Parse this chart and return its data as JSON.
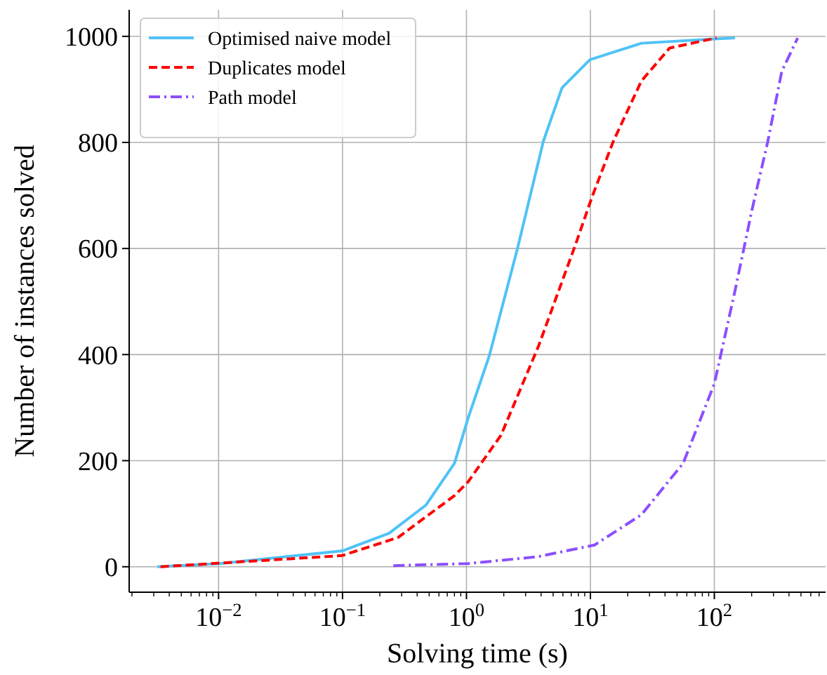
{
  "chart_data": {
    "type": "line",
    "xlabel": "Solving time (s)",
    "ylabel": "Number of instances solved",
    "log": "x",
    "grid": true,
    "legend": "top left",
    "xlim": [
      0.0019,
      790
    ],
    "ylim": [
      -48,
      1050
    ],
    "xticks": [
      {
        "value": 0.002,
        "label": null
      },
      {
        "value": 0.003,
        "label": null
      },
      {
        "value": 0.004,
        "label": null
      },
      {
        "value": 0.005,
        "label": null
      },
      {
        "value": 0.006,
        "label": null
      },
      {
        "value": 0.007,
        "label": null
      },
      {
        "value": 0.008,
        "label": null
      },
      {
        "value": 0.009,
        "label": null
      },
      {
        "value": 0.01,
        "label": "10$^{−2}$"
      },
      {
        "value": 0.02,
        "label": null
      },
      {
        "value": 0.03,
        "label": null
      },
      {
        "value": 0.04,
        "label": null
      },
      {
        "value": 0.05,
        "label": null
      },
      {
        "value": 0.06,
        "label": null
      },
      {
        "value": 0.07,
        "label": null
      },
      {
        "value": 0.08,
        "label": null
      },
      {
        "value": 0.09,
        "label": null
      },
      {
        "value": 0.1,
        "label": "10$^{−1}$"
      },
      {
        "value": 0.2,
        "label": null
      },
      {
        "value": 0.3,
        "label": null
      },
      {
        "value": 0.4,
        "label": null
      },
      {
        "value": 0.5,
        "label": null
      },
      {
        "value": 0.6,
        "label": null
      },
      {
        "value": 0.7,
        "label": null
      },
      {
        "value": 0.8,
        "label": null
      },
      {
        "value": 0.9,
        "label": null
      },
      {
        "value": 1,
        "label": "10$^{0}$"
      },
      {
        "value": 2,
        "label": null
      },
      {
        "value": 3,
        "label": null
      },
      {
        "value": 4,
        "label": null
      },
      {
        "value": 5,
        "label": null
      },
      {
        "value": 6,
        "label": null
      },
      {
        "value": 7,
        "label": null
      },
      {
        "value": 8,
        "label": null
      },
      {
        "value": 9,
        "label": null
      },
      {
        "value": 10,
        "label": "10$^{1}$"
      },
      {
        "value": 20,
        "label": null
      },
      {
        "value": 30,
        "label": null
      },
      {
        "value": 40,
        "label": null
      },
      {
        "value": 50,
        "label": null
      },
      {
        "value": 60,
        "label": null
      },
      {
        "value": 70,
        "label": null
      },
      {
        "value": 80,
        "label": null
      },
      {
        "value": 90,
        "label": null
      },
      {
        "value": 100,
        "label": "10$^{2}$"
      },
      {
        "value": 200,
        "label": null
      },
      {
        "value": 300,
        "label": null
      },
      {
        "value": 400,
        "label": null
      },
      {
        "value": 500,
        "label": null
      },
      {
        "value": 600,
        "label": null
      },
      {
        "value": 700,
        "label": null
      }
    ],
    "yticks": [
      0,
      200,
      400,
      600,
      800,
      1000
    ],
    "series": [
      {
        "name": "Optimised naive model",
        "color": "#4fc3f7",
        "line_style": "solid",
        "x": [
          0.0032,
          0.0102,
          0.1,
          0.237,
          0.47,
          0.8,
          1.03,
          1.53,
          2.58,
          4.17,
          5.9,
          9.9,
          25.8,
          100,
          147
        ],
        "values": [
          0,
          6,
          30,
          63,
          116,
          195,
          280,
          398,
          600,
          802,
          903,
          956,
          987,
          995,
          997
        ]
      },
      {
        "name": "Duplicates model",
        "color": "#ff0000",
        "line_style": "dashed",
        "x": [
          0.0034,
          0.099,
          0.28,
          0.8,
          1.03,
          1.9,
          3.8,
          7.6,
          10.3,
          15.3,
          25.8,
          43.6,
          104
        ],
        "values": [
          0,
          21,
          55,
          134,
          160,
          248,
          415,
          608,
          697,
          802,
          916,
          978,
          997
        ]
      },
      {
        "name": "Path model",
        "color": "#8c4fff",
        "line_style": "dashdot",
        "x": [
          0.257,
          1.03,
          3.8,
          10.8,
          25.8,
          56,
          100,
          147,
          200,
          270,
          350,
          470
        ],
        "values": [
          2,
          6,
          19,
          41,
          98,
          195,
          345,
          521,
          670,
          802,
          934,
          997
        ]
      }
    ]
  }
}
